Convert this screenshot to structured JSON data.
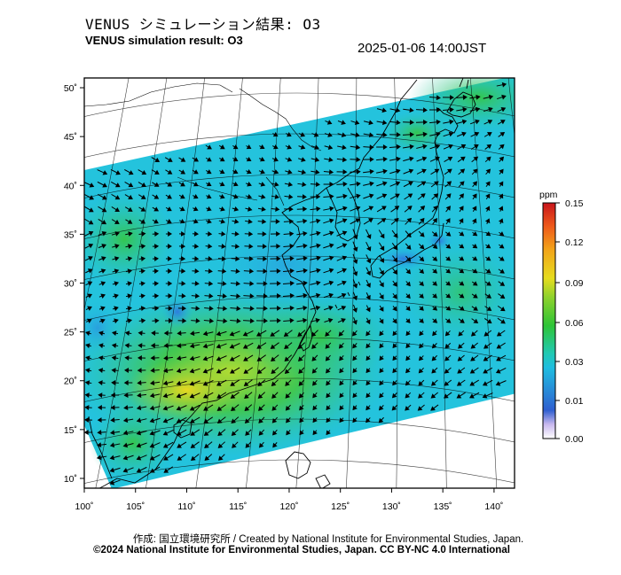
{
  "header": {
    "title_jp": "VENUS シミュレーション結果: O3",
    "title_en": "VENUS simulation result: O3",
    "timestamp": "2025-01-06 14:00JST"
  },
  "map": {
    "lon_range": [
      100,
      142
    ],
    "lat_range": [
      9,
      51
    ],
    "lon_ticks": [
      "100˚",
      "105˚",
      "110˚",
      "115˚",
      "120˚",
      "125˚",
      "130˚",
      "135˚",
      "140˚"
    ],
    "lat_ticks": [
      "10˚",
      "15˚",
      "20˚",
      "25˚",
      "30˚",
      "35˚",
      "40˚",
      "45˚",
      "50˚"
    ],
    "field": "O3 concentration with wind vectors"
  },
  "colorbar": {
    "unit": "ppm",
    "ticks": [
      "0.15",
      "0.12",
      "0.09",
      "0.06",
      "0.03",
      "0.01",
      "0.00"
    ],
    "colors": [
      "#d7281e",
      "#f08a1a",
      "#f2d21a",
      "#9bd334",
      "#2ec436",
      "#21c7d8",
      "#2f8fe0",
      "#2a55c8",
      "#ffffff"
    ]
  },
  "footer": {
    "credit_jp": "作成: 国立環境研究所 / Created by National Institute for Environmental Studies, Japan.",
    "copyright": "©2024 National Institute for Environmental Studies, Japan. CC BY-NC 4.0 International"
  }
}
